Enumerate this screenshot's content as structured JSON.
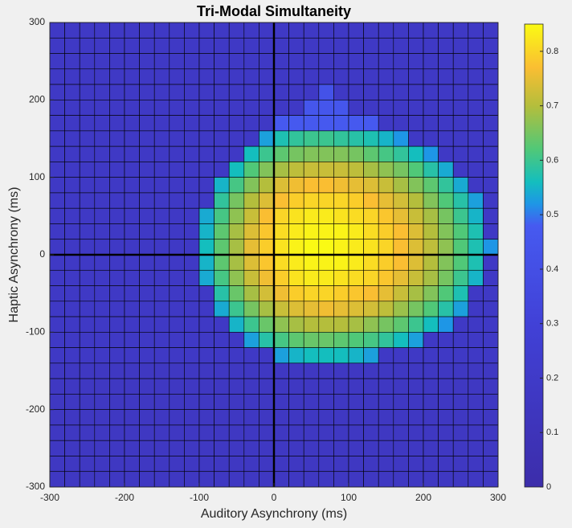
{
  "chart_data": {
    "type": "heatmap",
    "title": "Tri-Modal Simultaneity",
    "x_label": "Auditory Asynchrony (ms)",
    "y_label": "Haptic Asynchrony (ms)",
    "xlim": [
      -300,
      300
    ],
    "ylim": [
      -300,
      300
    ],
    "xticks": [
      -300,
      -200,
      -100,
      0,
      100,
      200,
      300
    ],
    "yticks": [
      -300,
      -200,
      -100,
      0,
      100,
      200,
      300
    ],
    "clim": [
      0,
      0.85
    ],
    "cticks": [
      0,
      0.1,
      0.2,
      0.3,
      0.4,
      0.5,
      0.6,
      0.7,
      0.8
    ],
    "colorscale": [
      [
        0,
        "#3c2daa"
      ],
      [
        0.3,
        "#4141d7"
      ],
      [
        0.48,
        "#465af0"
      ],
      [
        0.52,
        "#1e96e6"
      ],
      [
        0.56,
        "#14bebe"
      ],
      [
        0.62,
        "#50c878"
      ],
      [
        0.7,
        "#b4be3c"
      ],
      [
        0.77,
        "#fabe32"
      ],
      [
        0.85,
        "#fafa14"
      ]
    ],
    "reference_lines": {
      "x": 0,
      "y": 0
    },
    "x": [
      -290,
      -270,
      -250,
      -230,
      -210,
      -190,
      -170,
      -150,
      -130,
      -110,
      -90,
      -70,
      -50,
      -30,
      -10,
      10,
      30,
      50,
      70,
      90,
      110,
      130,
      150,
      170,
      190,
      210,
      230,
      250,
      270,
      290
    ],
    "y": [
      290,
      270,
      250,
      230,
      210,
      190,
      170,
      150,
      130,
      110,
      90,
      70,
      50,
      30,
      10,
      -10,
      -30,
      -50,
      -70,
      -90,
      -110,
      -130,
      -150,
      -170,
      -190,
      -210,
      -230,
      -250,
      -270,
      -290
    ],
    "z": [
      [
        0.18,
        0.18,
        0.18,
        0.18,
        0.18,
        0.18,
        0.18,
        0.18,
        0.18,
        0.18,
        0.18,
        0.18,
        0.18,
        0.18,
        0.18,
        0.18,
        0.18,
        0.18,
        0.18,
        0.18,
        0.18,
        0.18,
        0.18,
        0.18,
        0.18,
        0.18,
        0.18,
        0.18,
        0.18,
        0.18
      ],
      [
        0.18,
        0.18,
        0.18,
        0.18,
        0.18,
        0.18,
        0.18,
        0.18,
        0.18,
        0.18,
        0.18,
        0.18,
        0.18,
        0.18,
        0.18,
        0.18,
        0.18,
        0.18,
        0.18,
        0.18,
        0.18,
        0.18,
        0.18,
        0.18,
        0.18,
        0.18,
        0.18,
        0.18,
        0.18,
        0.18
      ],
      [
        0.18,
        0.18,
        0.18,
        0.18,
        0.18,
        0.18,
        0.18,
        0.18,
        0.18,
        0.18,
        0.18,
        0.18,
        0.18,
        0.18,
        0.18,
        0.18,
        0.18,
        0.18,
        0.18,
        0.18,
        0.18,
        0.18,
        0.18,
        0.18,
        0.18,
        0.18,
        0.18,
        0.18,
        0.18,
        0.18
      ],
      [
        0.18,
        0.18,
        0.18,
        0.18,
        0.18,
        0.18,
        0.18,
        0.18,
        0.18,
        0.18,
        0.18,
        0.18,
        0.18,
        0.18,
        0.18,
        0.18,
        0.18,
        0.18,
        0.18,
        0.18,
        0.18,
        0.18,
        0.18,
        0.18,
        0.18,
        0.18,
        0.18,
        0.18,
        0.18,
        0.18
      ],
      [
        0.18,
        0.18,
        0.18,
        0.18,
        0.18,
        0.18,
        0.18,
        0.18,
        0.18,
        0.18,
        0.18,
        0.18,
        0.18,
        0.18,
        0.18,
        0.18,
        0.18,
        0.18,
        0.42,
        0.18,
        0.18,
        0.18,
        0.18,
        0.18,
        0.18,
        0.18,
        0.18,
        0.18,
        0.18,
        0.18
      ],
      [
        0.18,
        0.18,
        0.18,
        0.18,
        0.18,
        0.18,
        0.18,
        0.18,
        0.18,
        0.18,
        0.18,
        0.18,
        0.18,
        0.18,
        0.18,
        0.18,
        0.18,
        0.45,
        0.45,
        0.45,
        0.18,
        0.18,
        0.18,
        0.18,
        0.18,
        0.18,
        0.18,
        0.18,
        0.18,
        0.18
      ],
      [
        0.18,
        0.18,
        0.18,
        0.18,
        0.18,
        0.18,
        0.18,
        0.18,
        0.18,
        0.18,
        0.18,
        0.18,
        0.18,
        0.18,
        0.18,
        0.47,
        0.47,
        0.47,
        0.47,
        0.47,
        0.47,
        0.47,
        0.18,
        0.18,
        0.18,
        0.18,
        0.18,
        0.18,
        0.18,
        0.18
      ],
      [
        0.18,
        0.18,
        0.18,
        0.18,
        0.18,
        0.18,
        0.18,
        0.18,
        0.18,
        0.18,
        0.18,
        0.18,
        0.18,
        0.18,
        0.53,
        0.57,
        0.59,
        0.6,
        0.6,
        0.59,
        0.58,
        0.57,
        0.55,
        0.52,
        0.18,
        0.18,
        0.18,
        0.18,
        0.18,
        0.18
      ],
      [
        0.18,
        0.18,
        0.18,
        0.18,
        0.18,
        0.18,
        0.18,
        0.18,
        0.18,
        0.18,
        0.18,
        0.18,
        0.18,
        0.56,
        0.6,
        0.63,
        0.65,
        0.66,
        0.66,
        0.66,
        0.65,
        0.63,
        0.61,
        0.59,
        0.56,
        0.52,
        0.18,
        0.18,
        0.18,
        0.18
      ],
      [
        0.18,
        0.18,
        0.18,
        0.18,
        0.18,
        0.18,
        0.18,
        0.18,
        0.18,
        0.18,
        0.18,
        0.18,
        0.56,
        0.62,
        0.66,
        0.69,
        0.71,
        0.72,
        0.72,
        0.72,
        0.71,
        0.69,
        0.67,
        0.65,
        0.62,
        0.58,
        0.54,
        0.18,
        0.18,
        0.18
      ],
      [
        0.18,
        0.18,
        0.18,
        0.18,
        0.18,
        0.18,
        0.18,
        0.18,
        0.18,
        0.18,
        0.18,
        0.55,
        0.61,
        0.66,
        0.7,
        0.74,
        0.76,
        0.77,
        0.77,
        0.76,
        0.75,
        0.74,
        0.72,
        0.69,
        0.66,
        0.63,
        0.59,
        0.54,
        0.18,
        0.18
      ],
      [
        0.18,
        0.18,
        0.18,
        0.18,
        0.18,
        0.18,
        0.18,
        0.18,
        0.18,
        0.18,
        0.18,
        0.59,
        0.65,
        0.7,
        0.74,
        0.77,
        0.79,
        0.8,
        0.8,
        0.8,
        0.79,
        0.77,
        0.75,
        0.73,
        0.7,
        0.66,
        0.62,
        0.58,
        0.53,
        0.18
      ],
      [
        0.18,
        0.18,
        0.18,
        0.18,
        0.18,
        0.18,
        0.18,
        0.18,
        0.18,
        0.18,
        0.54,
        0.61,
        0.67,
        0.72,
        0.77,
        0.8,
        0.82,
        0.83,
        0.83,
        0.82,
        0.81,
        0.8,
        0.78,
        0.75,
        0.72,
        0.69,
        0.65,
        0.6,
        0.55,
        0.18
      ],
      [
        0.18,
        0.18,
        0.18,
        0.18,
        0.18,
        0.18,
        0.18,
        0.18,
        0.18,
        0.18,
        0.55,
        0.63,
        0.69,
        0.74,
        0.78,
        0.81,
        0.83,
        0.84,
        0.84,
        0.84,
        0.83,
        0.81,
        0.79,
        0.77,
        0.74,
        0.7,
        0.66,
        0.62,
        0.57,
        0.18
      ],
      [
        0.18,
        0.18,
        0.18,
        0.18,
        0.18,
        0.18,
        0.18,
        0.18,
        0.18,
        0.18,
        0.56,
        0.63,
        0.69,
        0.75,
        0.79,
        0.82,
        0.84,
        0.85,
        0.85,
        0.84,
        0.83,
        0.82,
        0.8,
        0.77,
        0.74,
        0.71,
        0.67,
        0.62,
        0.57,
        0.52
      ],
      [
        0.18,
        0.18,
        0.18,
        0.18,
        0.18,
        0.18,
        0.18,
        0.18,
        0.18,
        0.18,
        0.55,
        0.63,
        0.69,
        0.74,
        0.78,
        0.81,
        0.83,
        0.84,
        0.84,
        0.84,
        0.83,
        0.81,
        0.79,
        0.77,
        0.74,
        0.7,
        0.66,
        0.62,
        0.57,
        0.18
      ],
      [
        0.18,
        0.18,
        0.18,
        0.18,
        0.18,
        0.18,
        0.18,
        0.18,
        0.18,
        0.18,
        0.54,
        0.61,
        0.67,
        0.72,
        0.76,
        0.79,
        0.82,
        0.83,
        0.83,
        0.82,
        0.81,
        0.8,
        0.78,
        0.75,
        0.72,
        0.69,
        0.65,
        0.6,
        0.55,
        0.18
      ],
      [
        0.18,
        0.18,
        0.18,
        0.18,
        0.18,
        0.18,
        0.18,
        0.18,
        0.18,
        0.18,
        0.18,
        0.58,
        0.64,
        0.69,
        0.73,
        0.76,
        0.79,
        0.8,
        0.8,
        0.79,
        0.78,
        0.77,
        0.75,
        0.72,
        0.69,
        0.66,
        0.62,
        0.57,
        0.18,
        0.18
      ],
      [
        0.18,
        0.18,
        0.18,
        0.18,
        0.18,
        0.18,
        0.18,
        0.18,
        0.18,
        0.18,
        0.18,
        0.54,
        0.6,
        0.65,
        0.69,
        0.72,
        0.74,
        0.75,
        0.76,
        0.75,
        0.74,
        0.73,
        0.71,
        0.68,
        0.65,
        0.62,
        0.58,
        0.53,
        0.18,
        0.18
      ],
      [
        0.18,
        0.18,
        0.18,
        0.18,
        0.18,
        0.18,
        0.18,
        0.18,
        0.18,
        0.18,
        0.18,
        0.18,
        0.55,
        0.6,
        0.64,
        0.67,
        0.69,
        0.7,
        0.7,
        0.7,
        0.69,
        0.67,
        0.65,
        0.63,
        0.6,
        0.56,
        0.52,
        0.18,
        0.18,
        0.18
      ],
      [
        0.18,
        0.18,
        0.18,
        0.18,
        0.18,
        0.18,
        0.18,
        0.18,
        0.18,
        0.18,
        0.18,
        0.18,
        0.18,
        0.53,
        0.58,
        0.61,
        0.63,
        0.64,
        0.64,
        0.63,
        0.62,
        0.61,
        0.59,
        0.56,
        0.53,
        0.18,
        0.18,
        0.18,
        0.18,
        0.18
      ],
      [
        0.18,
        0.18,
        0.18,
        0.18,
        0.18,
        0.18,
        0.18,
        0.18,
        0.18,
        0.18,
        0.18,
        0.18,
        0.18,
        0.18,
        0.18,
        0.53,
        0.55,
        0.56,
        0.56,
        0.56,
        0.55,
        0.53,
        0.18,
        0.18,
        0.18,
        0.18,
        0.18,
        0.18,
        0.18,
        0.18
      ],
      [
        0.16,
        0.16,
        0.16,
        0.16,
        0.16,
        0.16,
        0.16,
        0.16,
        0.16,
        0.16,
        0.16,
        0.16,
        0.16,
        0.16,
        0.16,
        0.16,
        0.16,
        0.16,
        0.16,
        0.16,
        0.16,
        0.16,
        0.16,
        0.16,
        0.16,
        0.16,
        0.16,
        0.16,
        0.16,
        0.16
      ],
      [
        0.16,
        0.16,
        0.16,
        0.16,
        0.16,
        0.16,
        0.16,
        0.16,
        0.16,
        0.16,
        0.16,
        0.16,
        0.16,
        0.16,
        0.16,
        0.16,
        0.16,
        0.16,
        0.16,
        0.16,
        0.16,
        0.16,
        0.16,
        0.16,
        0.16,
        0.16,
        0.16,
        0.16,
        0.16,
        0.16
      ],
      [
        0.16,
        0.16,
        0.16,
        0.16,
        0.16,
        0.16,
        0.16,
        0.16,
        0.16,
        0.16,
        0.16,
        0.16,
        0.16,
        0.16,
        0.16,
        0.16,
        0.16,
        0.16,
        0.16,
        0.16,
        0.16,
        0.16,
        0.16,
        0.16,
        0.16,
        0.16,
        0.16,
        0.16,
        0.16,
        0.16
      ],
      [
        0.16,
        0.16,
        0.16,
        0.16,
        0.16,
        0.16,
        0.16,
        0.16,
        0.16,
        0.16,
        0.16,
        0.16,
        0.16,
        0.16,
        0.16,
        0.16,
        0.16,
        0.16,
        0.16,
        0.16,
        0.16,
        0.16,
        0.16,
        0.16,
        0.16,
        0.16,
        0.16,
        0.16,
        0.16,
        0.16
      ],
      [
        0.16,
        0.16,
        0.16,
        0.16,
        0.16,
        0.16,
        0.16,
        0.16,
        0.16,
        0.16,
        0.16,
        0.16,
        0.16,
        0.16,
        0.16,
        0.16,
        0.16,
        0.16,
        0.16,
        0.16,
        0.16,
        0.16,
        0.16,
        0.16,
        0.16,
        0.16,
        0.16,
        0.16,
        0.16,
        0.16
      ],
      [
        0.16,
        0.16,
        0.16,
        0.16,
        0.16,
        0.16,
        0.16,
        0.16,
        0.16,
        0.16,
        0.16,
        0.16,
        0.16,
        0.16,
        0.16,
        0.16,
        0.16,
        0.16,
        0.16,
        0.16,
        0.16,
        0.16,
        0.16,
        0.16,
        0.16,
        0.16,
        0.16,
        0.16,
        0.16,
        0.16
      ],
      [
        0.16,
        0.16,
        0.16,
        0.16,
        0.16,
        0.16,
        0.16,
        0.16,
        0.16,
        0.16,
        0.16,
        0.16,
        0.16,
        0.16,
        0.16,
        0.16,
        0.16,
        0.16,
        0.16,
        0.16,
        0.16,
        0.16,
        0.16,
        0.16,
        0.16,
        0.16,
        0.16,
        0.16,
        0.16,
        0.16
      ],
      [
        0.16,
        0.16,
        0.16,
        0.16,
        0.16,
        0.16,
        0.16,
        0.16,
        0.16,
        0.16,
        0.16,
        0.16,
        0.16,
        0.16,
        0.16,
        0.16,
        0.16,
        0.16,
        0.16,
        0.16,
        0.16,
        0.16,
        0.16,
        0.16,
        0.16,
        0.16,
        0.16,
        0.16,
        0.16,
        0.16
      ]
    ]
  }
}
